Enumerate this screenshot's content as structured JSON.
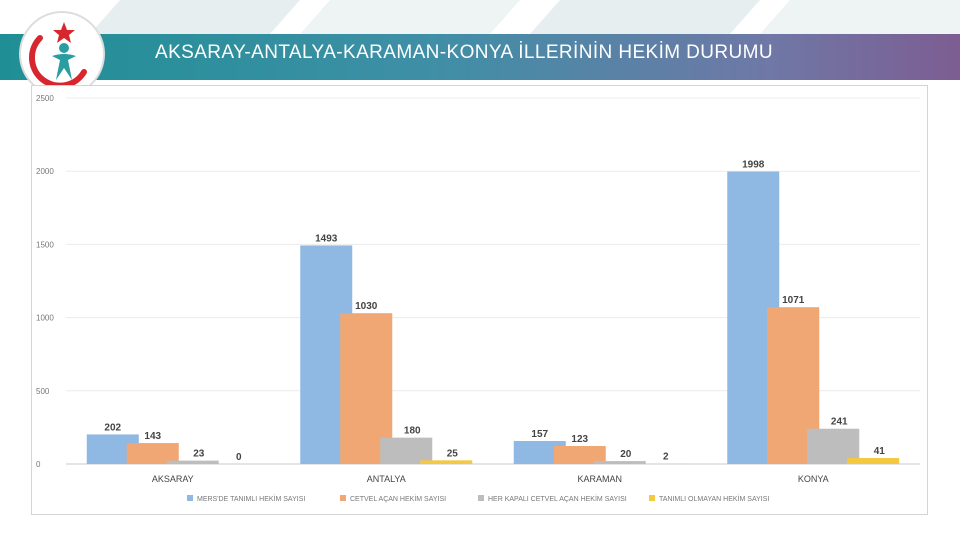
{
  "header": {
    "title": "AKSARAY-ANTALYA-KARAMAN-KONYA İLLERİNİN HEKİM DURUMU"
  },
  "colors": {
    "header_start": "#1f8f95",
    "header_end": "#7d5d92",
    "logo_red": "#d7262e",
    "logo_teal": "#2a9da3"
  },
  "chart_data": {
    "type": "bar",
    "categories": [
      "AKSARAY",
      "ANTALYA",
      "KARAMAN",
      "KONYA"
    ],
    "series": [
      {
        "name": "MERS'DE TANIMLI HEKİM SAYISI",
        "values": [
          202,
          1493,
          157,
          1998
        ],
        "color": "#8fb9e3"
      },
      {
        "name": "CETVEL AÇAN HEKİM SAYISI",
        "values": [
          143,
          1030,
          123,
          1071
        ],
        "color": "#f0a773"
      },
      {
        "name": "HER KAPALI CETVEL AÇAN HEKİM SAYISI",
        "values": [
          23,
          180,
          20,
          241
        ],
        "color": "#bdbdbd"
      },
      {
        "name": "TANIMLI OLMAYAN HEKİM SAYISI",
        "values": [
          0,
          25,
          2,
          41
        ],
        "color": "#f5c842"
      }
    ],
    "yticks": [
      0,
      500,
      1000,
      1500,
      2000,
      2500
    ],
    "ylim": [
      0,
      2500
    ],
    "grid": true,
    "legend_position": "bottom"
  }
}
